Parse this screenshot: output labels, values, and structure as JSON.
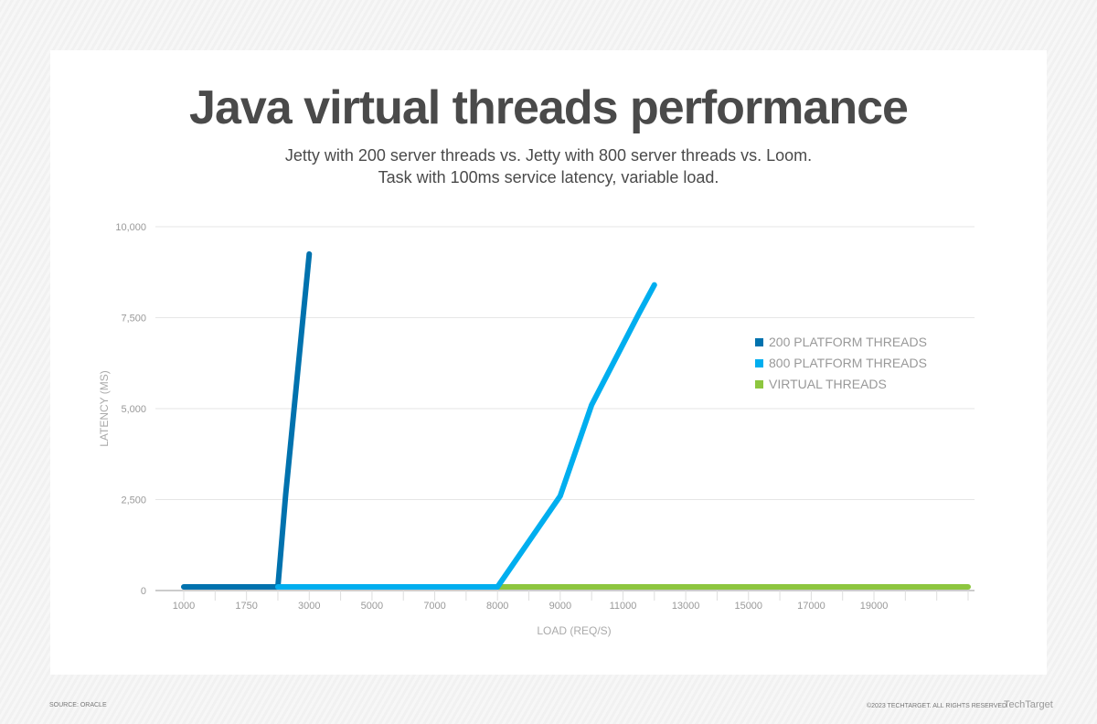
{
  "chart_data": {
    "type": "line",
    "title": "Java virtual threads performance",
    "subtitle": [
      "Jetty with 200 server threads vs. Jetty with 800 server threads vs. Loom.",
      "Task with 100ms service latency, variable load."
    ],
    "xlabel": "LOAD (REQ/S)",
    "ylabel": "LATENCY (MS)",
    "x_tick_labels": [
      "1000",
      "1750",
      "3000",
      "5000",
      "7000",
      "8000",
      "9000",
      "11000",
      "13000",
      "15000",
      "17000",
      "19000"
    ],
    "x_tick_count": 26,
    "y_ticks": [
      0,
      2500,
      5000,
      7500,
      10000
    ],
    "y_tick_labels": [
      "0",
      "2,500",
      "5,000",
      "7,500",
      "10,000"
    ],
    "ylim": [
      0,
      10000
    ],
    "grid": true,
    "legend_position": "right",
    "series": [
      {
        "name": "200 PLATFORM THREADS",
        "color": "#0072ae",
        "points": [
          [
            0,
            100
          ],
          [
            3,
            100
          ],
          [
            3.25,
            2650
          ],
          [
            4,
            9250
          ]
        ]
      },
      {
        "name": "800 PLATFORM THREADS",
        "color": "#00aeef",
        "points": [
          [
            3,
            100
          ],
          [
            10,
            100
          ],
          [
            12,
            2600
          ],
          [
            13,
            5100
          ],
          [
            14.5,
            7600
          ],
          [
            15,
            8400
          ]
        ]
      },
      {
        "name": "VIRTUAL THREADS",
        "color": "#8dc63f",
        "points": [
          [
            10,
            100
          ],
          [
            25,
            100
          ]
        ]
      }
    ]
  },
  "footer": {
    "source": "SOURCE: ORACLE",
    "copyright": "©2023 TECHTARGET. ALL RIGHTS RESERVED",
    "logo": "TechTarget"
  }
}
